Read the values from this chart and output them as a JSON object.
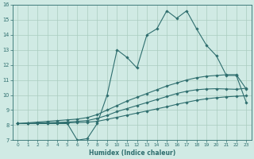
{
  "xlabel": "Humidex (Indice chaleur)",
  "x_values": [
    0,
    1,
    2,
    3,
    4,
    5,
    6,
    7,
    8,
    9,
    10,
    11,
    12,
    13,
    14,
    15,
    16,
    17,
    18,
    19,
    20,
    21,
    22,
    23
  ],
  "line1": [
    8.1,
    8.1,
    8.1,
    8.1,
    8.1,
    8.1,
    7.0,
    7.1,
    8.1,
    10.0,
    13.0,
    12.5,
    11.8,
    14.0,
    14.4,
    15.6,
    15.1,
    15.6,
    14.4,
    13.3,
    12.6,
    11.3,
    11.3,
    9.5
  ],
  "line2": [
    8.1,
    8.15,
    8.2,
    8.25,
    8.3,
    8.35,
    8.4,
    8.5,
    8.7,
    9.0,
    9.3,
    9.6,
    9.85,
    10.1,
    10.35,
    10.6,
    10.8,
    11.0,
    11.15,
    11.25,
    11.3,
    11.35,
    11.35,
    10.4
  ],
  "line3": [
    8.1,
    8.12,
    8.14,
    8.16,
    8.18,
    8.2,
    8.25,
    8.3,
    8.45,
    8.65,
    8.9,
    9.1,
    9.3,
    9.5,
    9.7,
    9.9,
    10.1,
    10.25,
    10.35,
    10.4,
    10.42,
    10.4,
    10.38,
    10.45
  ],
  "line4": [
    8.1,
    8.1,
    8.1,
    8.12,
    8.14,
    8.15,
    8.17,
    8.19,
    8.25,
    8.38,
    8.52,
    8.66,
    8.8,
    8.94,
    9.08,
    9.22,
    9.38,
    9.52,
    9.65,
    9.75,
    9.82,
    9.88,
    9.92,
    9.95
  ],
  "color": "#2E6E6E",
  "bg_color": "#D0EAE4",
  "grid_color": "#AACCC0",
  "ylim": [
    7,
    16
  ],
  "yticks": [
    7,
    8,
    9,
    10,
    11,
    12,
    13,
    14,
    15,
    16
  ],
  "xticks": [
    0,
    1,
    2,
    3,
    4,
    5,
    6,
    7,
    8,
    9,
    10,
    11,
    12,
    13,
    14,
    15,
    16,
    17,
    18,
    19,
    20,
    21,
    22,
    23
  ]
}
